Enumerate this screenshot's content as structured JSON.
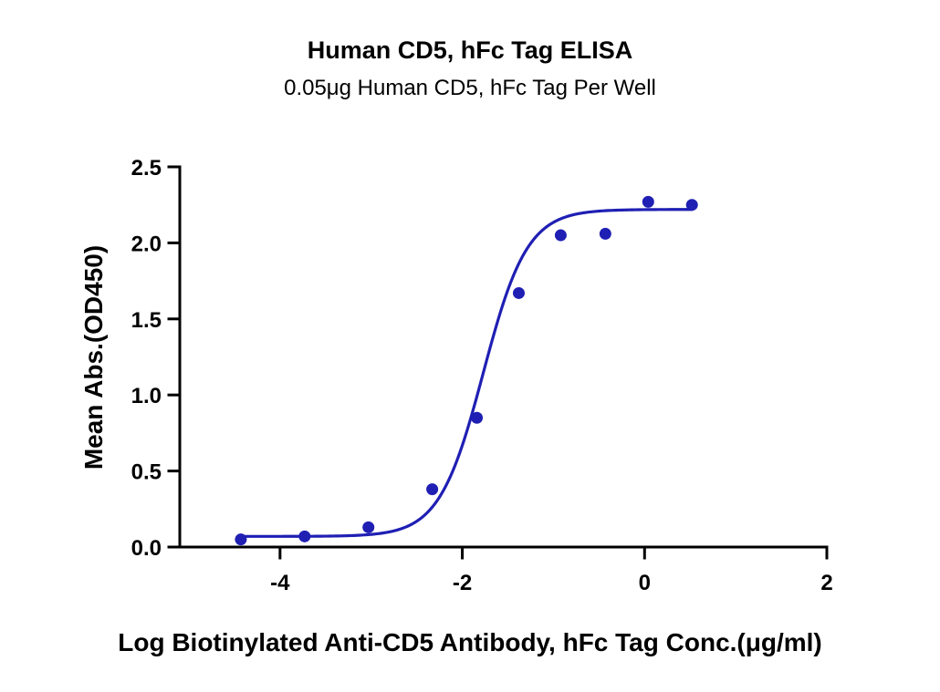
{
  "chart_data": {
    "type": "scatter",
    "title": "Human CD5, hFc Tag ELISA",
    "subtitle": "0.05μg Human CD5, hFc Tag Per Well",
    "xlabel": "Log Biotinylated Anti-CD5 Antibody, hFc Tag Conc.(μg/ml)",
    "ylabel": "Mean Abs.(OD450)",
    "xlim": [
      -5.1,
      2
    ],
    "ylim": [
      0,
      2.5
    ],
    "x_ticks": [
      -4,
      -2,
      0,
      2
    ],
    "x_tick_labels": [
      "-4",
      "-2",
      "0",
      "2"
    ],
    "y_ticks": [
      0,
      0.5,
      1,
      1.5,
      2,
      2.5
    ],
    "y_tick_labels": [
      "0.0",
      "0.5",
      "1.0",
      "1.5",
      "2.0",
      "2.5"
    ],
    "grid": false,
    "legend": "none",
    "series": [
      {
        "x": [
          -4.43,
          -3.73,
          -3.03,
          -2.33,
          -1.84,
          -1.38,
          -0.92,
          -0.43,
          0.04,
          0.52
        ],
        "y": [
          0.05,
          0.07,
          0.13,
          0.38,
          0.85,
          1.67,
          2.05,
          2.06,
          2.27,
          2.25
        ],
        "color": "#1f1fb4",
        "fit": {
          "model": "4PL",
          "bottom": 0.07,
          "top": 2.22,
          "logEC50": -1.77,
          "hill": 1.8,
          "x_range": [
            -4.43,
            0.52
          ]
        }
      }
    ]
  }
}
